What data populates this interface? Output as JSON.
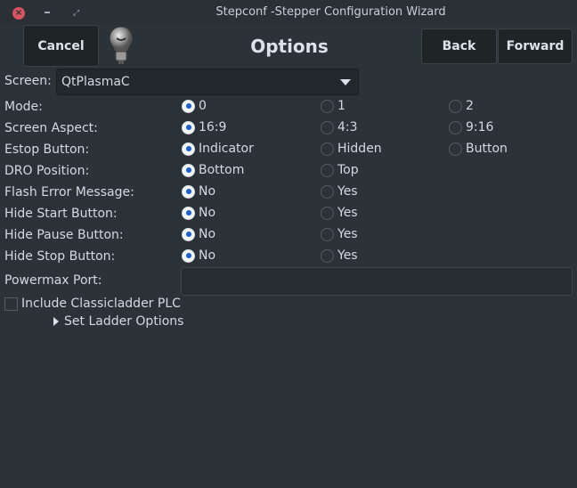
{
  "window": {
    "title": "Stepconf -Stepper Configuration Wizard"
  },
  "header": {
    "cancel": "Cancel",
    "heading": "Options",
    "back": "Back",
    "forward": "Forward"
  },
  "screen": {
    "label": "Screen:",
    "value": "QtPlasmaC"
  },
  "rows": [
    {
      "label": "Mode:",
      "options": [
        "0",
        "1",
        "2"
      ],
      "selected": 0
    },
    {
      "label": "Screen Aspect:",
      "options": [
        "16:9",
        "4:3",
        "9:16"
      ],
      "selected": 0
    },
    {
      "label": "Estop Button:",
      "options": [
        "Indicator",
        "Hidden",
        "Button"
      ],
      "selected": 0
    },
    {
      "label": "DRO Position:",
      "options": [
        "Bottom",
        "Top"
      ],
      "selected": 0
    },
    {
      "label": "Flash Error Message:",
      "options": [
        "No",
        "Yes"
      ],
      "selected": 0
    },
    {
      "label": "Hide Start Button:",
      "options": [
        "No",
        "Yes"
      ],
      "selected": 0
    },
    {
      "label": "Hide Pause Button:",
      "options": [
        "No",
        "Yes"
      ],
      "selected": 0
    },
    {
      "label": "Hide Stop Button:",
      "options": [
        "No",
        "Yes"
      ],
      "selected": 0
    }
  ],
  "powermax": {
    "label": "Powermax Port:",
    "value": ""
  },
  "classicladder": {
    "label": "Include Classicladder PLC",
    "checked": false
  },
  "ladder_options": {
    "label": "Set Ladder Options",
    "expanded": false
  }
}
